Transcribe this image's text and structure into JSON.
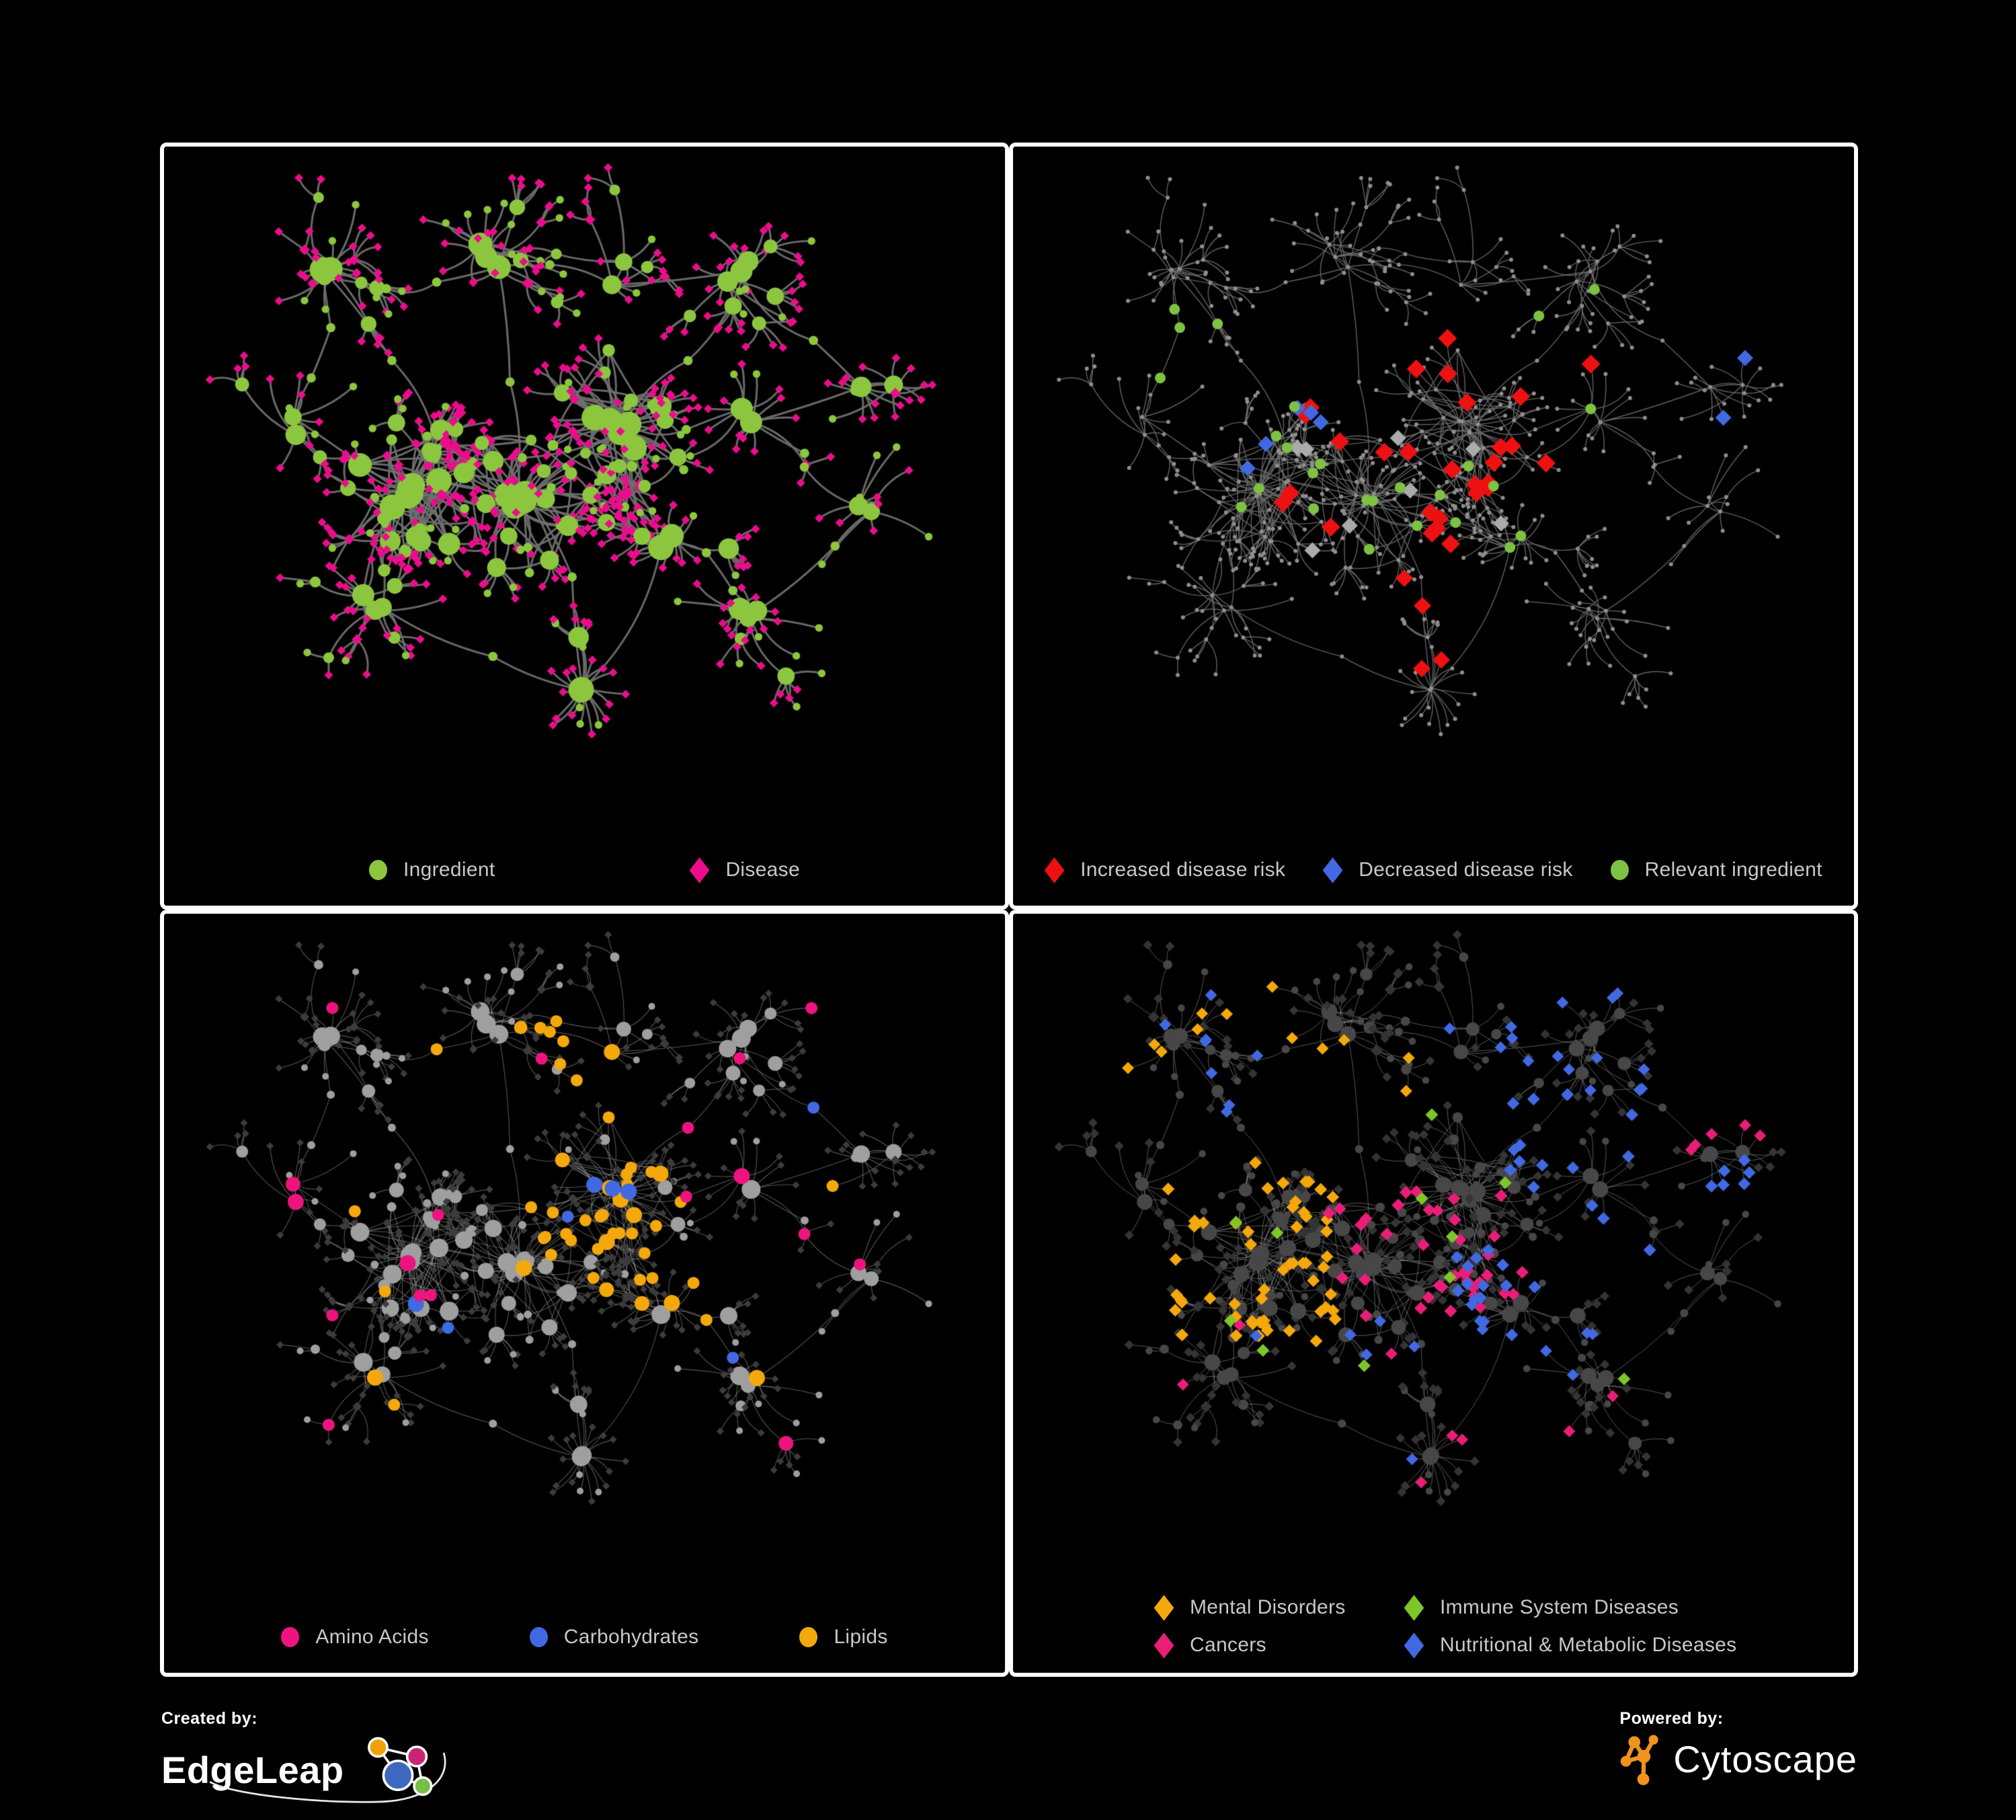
{
  "footer": {
    "created_by": "Created by:",
    "brand": "EdgeLeap",
    "powered_by": "Powered by:",
    "engine": "Cytoscape"
  },
  "chart_data": {
    "type": "network",
    "description": "Four views of the same ingredient-disease association network on black panels",
    "panels": [
      {
        "name": "ingredient-disease",
        "position": "top-left",
        "legend": [
          {
            "shape": "circle",
            "color": "#8CC63E",
            "label": "Ingredient"
          },
          {
            "shape": "diamond",
            "color": "#EB0D8C",
            "label": "Disease"
          }
        ],
        "style": {
          "mode": "typed",
          "edge": {
            "color": "#6F6F6F",
            "width": 3,
            "alpha": 0.95
          },
          "circle": {
            "color": "#8CC63E",
            "base": 4.5,
            "degScale": 1.2,
            "max": 19
          },
          "diamond": {
            "color": "#EB0D8C",
            "half": 6.5
          }
        }
      },
      {
        "name": "disease-risk",
        "position": "top-right",
        "legend": [
          {
            "shape": "diamond",
            "color": "#EE1111",
            "label": "Increased disease risk"
          },
          {
            "shape": "diamond",
            "color": "#4169E1",
            "label": "Decreased disease risk"
          },
          {
            "shape": "circle",
            "color": "#7DC242",
            "label": "Relevant ingredient"
          }
        ],
        "style": {
          "mode": "plain",
          "edge": {
            "color": "#6B6B6B",
            "width": 1.4,
            "alpha": 0.9
          },
          "dot": {
            "color": "#8E8E8E",
            "r": 3
          },
          "highlights": [
            {
              "shape": "diamond",
              "color": "#EE1111",
              "size": 14,
              "count": 28,
              "region": [
                0.3,
                0.26,
                0.74,
                0.62
              ],
              "seed": 21
            },
            {
              "shape": "diamond",
              "color": "#EE1111",
              "size": 13,
              "count": 4,
              "region": [
                0.42,
                0.66,
                0.66,
                0.84
              ],
              "seed": 22
            },
            {
              "shape": "diamond",
              "color": "#4169E1",
              "size": 12,
              "count": 5,
              "region": [
                0.1,
                0.28,
                0.38,
                0.52
              ],
              "seed": 23
            },
            {
              "shape": "diamond",
              "color": "#4169E1",
              "size": 12,
              "count": 2,
              "region": [
                0.82,
                0.26,
                0.99,
                0.44
              ],
              "seed": 24
            },
            {
              "shape": "diamond",
              "color": "#ABABAB",
              "size": 12,
              "count": 8,
              "region": [
                0.18,
                0.28,
                0.62,
                0.64
              ],
              "seed": 25
            },
            {
              "shape": "circle",
              "color": "#7DC242",
              "size": 8,
              "count": 26,
              "region": [
                0.08,
                0.16,
                0.72,
                0.62
              ],
              "seed": 26
            }
          ]
        }
      },
      {
        "name": "nutrient-classes",
        "position": "bottom-left",
        "legend": [
          {
            "shape": "circle",
            "color": "#ED147F",
            "label": "Amino Acids"
          },
          {
            "shape": "circle",
            "color": "#4169E1",
            "label": "Carbohydrates"
          },
          {
            "shape": "circle",
            "color": "#F5A80C",
            "label": "Lipids"
          }
        ],
        "style": {
          "mode": "classed",
          "edge": {
            "color": "#ABABAB",
            "width": 1.1,
            "alpha": 0.5
          },
          "circle": {
            "color": "#9F9F9F",
            "base": 4,
            "degScale": 1.0,
            "max": 14
          },
          "diamond": {
            "color": "#3C3C3C",
            "half": 5.5
          },
          "highlights": [
            {
              "shape": "circle",
              "color": "#F5A80C",
              "size": 9,
              "count": 26,
              "region": [
                0.42,
                0.35,
                0.62,
                0.52
              ],
              "seed": 31
            },
            {
              "shape": "circle",
              "color": "#F5A80C",
              "size": 9,
              "count": 10,
              "region": [
                0.3,
                0.12,
                0.55,
                0.3
              ],
              "seed": 32
            },
            {
              "shape": "circle",
              "color": "#F5A80C",
              "size": 9,
              "count": 8,
              "region": [
                0.5,
                0.55,
                0.68,
                0.68
              ],
              "seed": 33
            },
            {
              "shape": "circle",
              "color": "#F5A80C",
              "size": 9,
              "count": 8,
              "region": [
                0.1,
                0.3,
                0.9,
                0.8
              ],
              "seed": 34
            },
            {
              "shape": "circle",
              "color": "#4169E1",
              "size": 9,
              "count": 8,
              "region": [
                0.44,
                0.36,
                0.58,
                0.5
              ],
              "seed": 35
            },
            {
              "shape": "circle",
              "color": "#4169E1",
              "size": 9,
              "count": 4,
              "region": [
                0.05,
                0.05,
                0.95,
                0.7
              ],
              "seed": 36
            },
            {
              "shape": "circle",
              "color": "#ED147F",
              "size": 9,
              "count": 18,
              "region": [
                0.05,
                0.08,
                0.95,
                0.92
              ],
              "seed": 37
            }
          ]
        }
      },
      {
        "name": "disease-classes",
        "position": "bottom-right",
        "legend": [
          {
            "shape": "diamond",
            "color": "#F5A80C",
            "label": "Mental Disorders"
          },
          {
            "shape": "diamond",
            "color": "#7CC727",
            "label": "Immune System Diseases"
          },
          {
            "shape": "diamond",
            "color": "#E91E78",
            "label": "Cancers"
          },
          {
            "shape": "diamond",
            "color": "#4169E1",
            "label": "Nutritional & Metabolic Diseases"
          }
        ],
        "style": {
          "mode": "classed",
          "edge": {
            "color": "#9E9E9E",
            "width": 1.0,
            "alpha": 0.55
          },
          "circle": {
            "color": "#474747",
            "base": 4.5,
            "degScale": 0.8,
            "max": 12
          },
          "diamond": {
            "color": "#343434",
            "half": 7
          },
          "highlights": [
            {
              "shape": "diamond",
              "color": "#F5A80C",
              "size": 9.5,
              "count": 55,
              "region": [
                0.1,
                0.36,
                0.37,
                0.68
              ],
              "seed": 41
            },
            {
              "shape": "diamond",
              "color": "#F5A80C",
              "size": 9,
              "count": 12,
              "region": [
                0.06,
                0.06,
                0.48,
                0.32
              ],
              "seed": 42
            },
            {
              "shape": "diamond",
              "color": "#E91E78",
              "size": 9.5,
              "count": 38,
              "region": [
                0.36,
                0.38,
                0.62,
                0.62
              ],
              "seed": 43
            },
            {
              "shape": "diamond",
              "color": "#E91E78",
              "size": 9,
              "count": 8,
              "region": [
                0.12,
                0.62,
                0.92,
                0.92
              ],
              "seed": 44
            },
            {
              "shape": "diamond",
              "color": "#E91E78",
              "size": 9,
              "count": 5,
              "region": [
                0.8,
                0.2,
                0.98,
                0.34
              ],
              "seed": 45
            },
            {
              "shape": "diamond",
              "color": "#4169E1",
              "size": 9.5,
              "count": 16,
              "region": [
                0.52,
                0.5,
                0.66,
                0.68
              ],
              "seed": 46
            },
            {
              "shape": "diamond",
              "color": "#4169E1",
              "size": 9.5,
              "count": 22,
              "region": [
                0.6,
                0.22,
                0.95,
                0.55
              ],
              "seed": 47
            },
            {
              "shape": "diamond",
              "color": "#4169E1",
              "size": 9,
              "count": 14,
              "region": [
                0.52,
                0.03,
                0.97,
                0.24
              ],
              "seed": 48
            },
            {
              "shape": "diamond",
              "color": "#4169E1",
              "size": 9,
              "count": 8,
              "region": [
                0.1,
                0.06,
                0.35,
                0.3
              ],
              "seed": 49
            },
            {
              "shape": "diamond",
              "color": "#4169E1",
              "size": 9,
              "count": 12,
              "region": [
                0.16,
                0.62,
                0.75,
                0.95
              ],
              "seed": 50
            },
            {
              "shape": "diamond",
              "color": "#7CC727",
              "size": 9.5,
              "count": 11,
              "region": [
                0.15,
                0.08,
                0.85,
                0.85
              ],
              "seed": 51
            }
          ]
        }
      }
    ],
    "graph": {
      "seed": 1337,
      "margins": {
        "l": 64,
        "r": 64,
        "t": 50,
        "b": 190
      },
      "leafDiamondProb": 0.86,
      "subCircleProb": 0.74,
      "clusters": [
        {
          "x": 0.28,
          "y": 0.52,
          "h": 6,
          "s": 62,
          "sub": [
            3,
            7
          ],
          "leaf": [
            3,
            7
          ],
          "bp": 0.5,
          "dense": true
        },
        {
          "x": 0.53,
          "y": 0.4,
          "h": 6,
          "s": 52,
          "sub": [
            3,
            6
          ],
          "leaf": [
            3,
            7
          ],
          "bp": 0.5,
          "dense": true
        },
        {
          "x": 0.4,
          "y": 0.53,
          "h": 5,
          "s": 50,
          "sub": [
            3,
            6
          ],
          "leaf": [
            3,
            6
          ],
          "bp": 0.5,
          "dense": true
        },
        {
          "x": 0.16,
          "y": 0.17,
          "h": 3,
          "s": 42,
          "sub": [
            2,
            4
          ],
          "leaf": [
            2,
            5
          ],
          "bp": 0.55
        },
        {
          "x": 0.36,
          "y": 0.12,
          "h": 3,
          "s": 48,
          "sub": [
            2,
            4
          ],
          "leaf": [
            2,
            5
          ],
          "bp": 0.55
        },
        {
          "x": 0.53,
          "y": 0.16,
          "h": 2,
          "s": 38,
          "sub": [
            2,
            3
          ],
          "leaf": [
            2,
            5
          ],
          "bp": 0.5
        },
        {
          "x": 0.73,
          "y": 0.15,
          "h": 3,
          "s": 50,
          "sub": [
            2,
            4
          ],
          "leaf": [
            3,
            6
          ],
          "bp": 0.6
        },
        {
          "x": 0.89,
          "y": 0.33,
          "h": 2,
          "s": 38,
          "sub": [
            2,
            3
          ],
          "leaf": [
            2,
            5
          ],
          "bp": 0.6
        },
        {
          "x": 0.71,
          "y": 0.4,
          "h": 2,
          "s": 40,
          "sub": [
            2,
            3
          ],
          "leaf": [
            2,
            5
          ],
          "bp": 0.55
        },
        {
          "x": 0.6,
          "y": 0.6,
          "h": 2,
          "s": 36,
          "sub": [
            2,
            3
          ],
          "leaf": [
            5,
            9
          ],
          "bp": 0.7
        },
        {
          "x": 0.5,
          "y": 0.84,
          "h": 2,
          "s": 30,
          "sub": [
            1,
            2
          ],
          "leaf": [
            7,
            12
          ],
          "bp": 0.8
        },
        {
          "x": 0.11,
          "y": 0.42,
          "h": 2,
          "s": 44,
          "sub": [
            2,
            3
          ],
          "leaf": [
            2,
            4
          ],
          "bp": 0.5
        },
        {
          "x": 0.22,
          "y": 0.72,
          "h": 3,
          "s": 50,
          "sub": [
            2,
            3
          ],
          "leaf": [
            2,
            5
          ],
          "bp": 0.55
        },
        {
          "x": 0.73,
          "y": 0.72,
          "h": 3,
          "s": 46,
          "sub": [
            2,
            3
          ],
          "leaf": [
            3,
            6
          ],
          "bp": 0.6
        },
        {
          "x": 0.86,
          "y": 0.55,
          "h": 2,
          "s": 36,
          "sub": [
            1,
            3
          ],
          "leaf": [
            2,
            5
          ],
          "bp": 0.55
        }
      ],
      "links": [
        [
          0,
          2
        ],
        [
          2,
          1
        ],
        [
          0,
          1
        ],
        [
          0,
          3
        ],
        [
          3,
          4
        ],
        [
          4,
          2
        ],
        [
          4,
          5
        ],
        [
          5,
          6
        ],
        [
          6,
          7
        ],
        [
          1,
          6
        ],
        [
          1,
          8
        ],
        [
          8,
          7
        ],
        [
          2,
          9
        ],
        [
          9,
          13
        ],
        [
          2,
          10
        ],
        [
          12,
          10
        ],
        [
          0,
          11
        ],
        [
          11,
          3
        ],
        [
          0,
          12
        ],
        [
          13,
          14
        ],
        [
          8,
          14
        ],
        [
          1,
          9
        ],
        [
          9,
          10
        ]
      ]
    }
  }
}
